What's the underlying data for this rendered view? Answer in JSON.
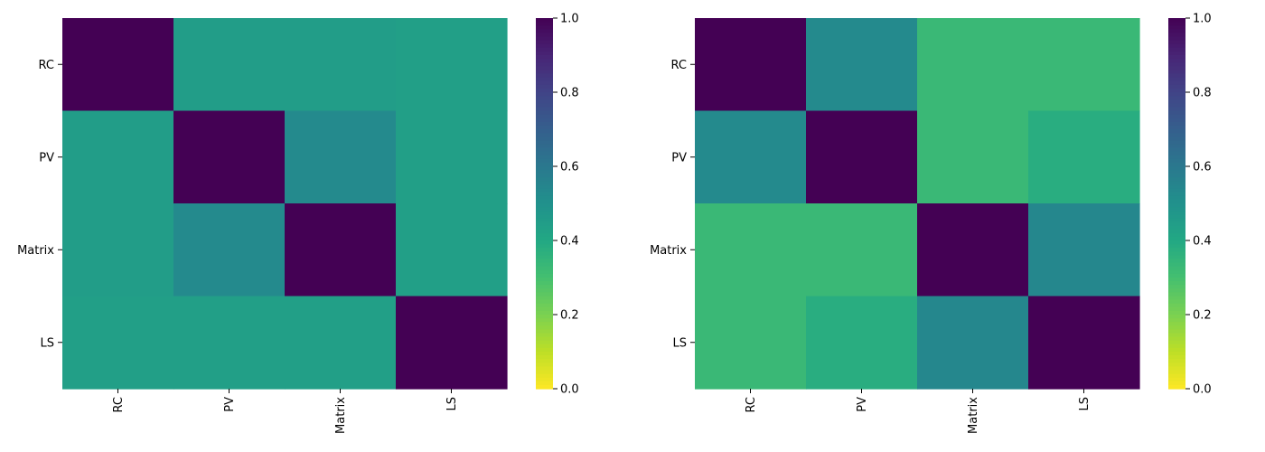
{
  "chart_data": [
    {
      "type": "heatmap",
      "title": "",
      "xlabel": "",
      "ylabel": "",
      "x_categories": [
        "RC",
        "PV",
        "Matrix",
        "LS"
      ],
      "y_categories": [
        "RC",
        "PV",
        "Matrix",
        "LS"
      ],
      "values": [
        [
          1.0,
          0.45,
          0.45,
          0.44
        ],
        [
          0.45,
          1.0,
          0.53,
          0.44
        ],
        [
          0.45,
          0.53,
          1.0,
          0.44
        ],
        [
          0.44,
          0.44,
          0.44,
          1.0
        ]
      ],
      "colormap": "viridis_r",
      "vmin": 0.0,
      "vmax": 1.0,
      "colorbar_ticks": [
        "0.0",
        "0.2",
        "0.4",
        "0.6",
        "0.8",
        "1.0"
      ]
    },
    {
      "type": "heatmap",
      "title": "",
      "xlabel": "",
      "ylabel": "",
      "x_categories": [
        "RC",
        "PV",
        "Matrix",
        "LS"
      ],
      "y_categories": [
        "RC",
        "PV",
        "Matrix",
        "LS"
      ],
      "values": [
        [
          1.0,
          0.53,
          0.33,
          0.33
        ],
        [
          0.53,
          1.0,
          0.33,
          0.38
        ],
        [
          0.33,
          0.33,
          1.0,
          0.54
        ],
        [
          0.33,
          0.38,
          0.54,
          1.0
        ]
      ],
      "colormap": "viridis_r",
      "vmin": 0.0,
      "vmax": 1.0,
      "colorbar_ticks": [
        "0.0",
        "0.2",
        "0.4",
        "0.6",
        "0.8",
        "1.0"
      ]
    }
  ]
}
